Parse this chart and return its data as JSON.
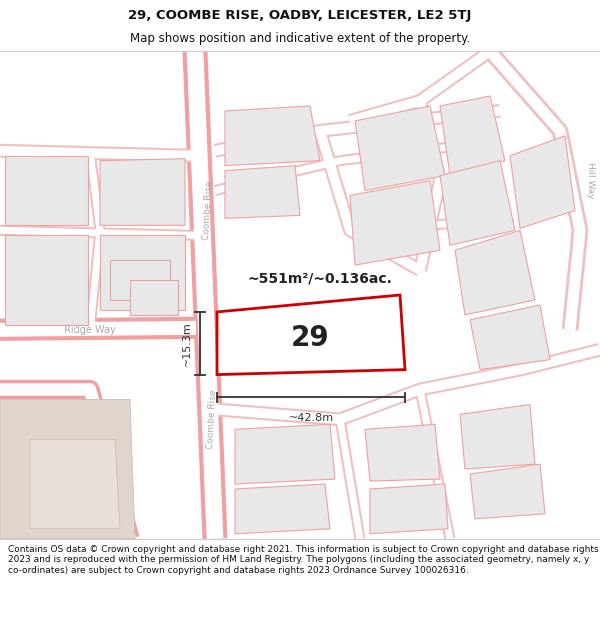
{
  "title_line1": "29, COOMBE RISE, OADBY, LEICESTER, LE2 5TJ",
  "title_line2": "Map shows position and indicative extent of the property.",
  "footer_text": "Contains OS data © Crown copyright and database right 2021. This information is subject to Crown copyright and database rights 2023 and is reproduced with the permission of HM Land Registry. The polygons (including the associated geometry, namely x, y co-ordinates) are subject to Crown copyright and database rights 2023 Ordnance Survey 100026316.",
  "street_label_coombe": "Coombe Rise",
  "street_label_ridge": "Ridge Way",
  "street_label_hill": "Hill Way",
  "label_size": "~551m²/~0.136ac.",
  "label_number": "29",
  "dim_width": "~42.8m",
  "dim_height": "~15.3m",
  "title_bg": "#ffffff",
  "footer_bg": "#ffffff",
  "map_bg": "#f8f6f4",
  "road_fill": "#ffffff",
  "road_outline_color": "#f0a0a0",
  "plot_fill": "#e8e8e8",
  "plot_outline": "#f0a0a0",
  "prop_fill": "#ffffff",
  "prop_outline": "#cc0000",
  "dim_color": "#333333",
  "label_color": "#222222",
  "street_color": "#aaaaaa",
  "title_fontsize": 9.5,
  "subtitle_fontsize": 8.5,
  "footer_fontsize": 6.5
}
